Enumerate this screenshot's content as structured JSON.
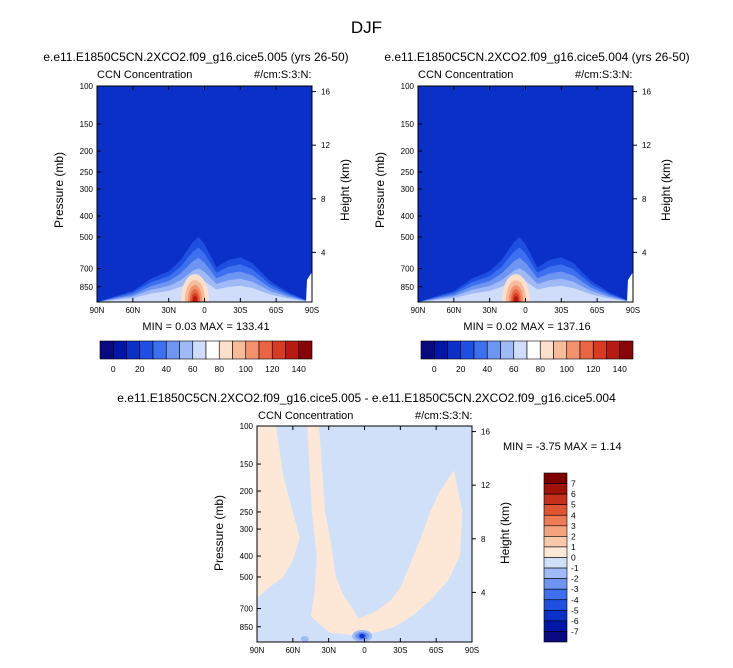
{
  "page": {
    "title": "DJF"
  },
  "colors": {
    "panel_scale": [
      "#0a0a80",
      "#0016a6",
      "#0a30c8",
      "#1f4fe0",
      "#3d70ef",
      "#6f95f2",
      "#9fbaf6",
      "#cfdcfa",
      "#ffffff",
      "#fce0cc",
      "#f8bb9a",
      "#f2916c",
      "#ea6544",
      "#d83a22",
      "#b81a12",
      "#880608"
    ],
    "diff_scale": [
      "#0a0a80",
      "#0016a6",
      "#0a30c8",
      "#1f4fe0",
      "#3d70ef",
      "#6f95f2",
      "#9fbaf6",
      "#cfe0f8",
      "#fde8d8",
      "#f8c9a8",
      "#f4a47d",
      "#ee7b54",
      "#e05430",
      "#c4301a",
      "#a01208",
      "#800000"
    ]
  },
  "panels": [
    {
      "title": "e.e11.E1850C5CN.2XCO2.f09_g16.cice5.005 (yrs 26-50)",
      "field": "CCN Concentration",
      "units": "#/cm:S:3:N:",
      "stats": "MIN =   0.03   MAX = 133.41"
    },
    {
      "title": "e.e11.E1850C5CN.2XCO2.f09_g16.cice5.004 (yrs 26-50)",
      "field": "CCN Concentration",
      "units": "#/cm:S:3:N:",
      "stats": "MIN =   0.02   MAX = 137.16"
    }
  ],
  "diff": {
    "title": "e.e11.E1850C5CN.2XCO2.f09_g16.cice5.005 - e.e11.E1850C5CN.2XCO2.f09_g16.cice5.004",
    "field": "CCN Concentration",
    "units": "#/cm:S:3:N:",
    "stats": "MIN =  -3.75   MAX =   1.14"
  },
  "axes": {
    "ylabel": "Pressure (mb)",
    "y2label": "Height (km)",
    "x_ticks": [
      "90N",
      "60N",
      "30N",
      "0",
      "30S",
      "60S",
      "90S"
    ],
    "p_ticks": [
      100,
      150,
      200,
      250,
      300,
      400,
      500,
      700,
      850
    ],
    "h_ticks": [
      16,
      12,
      8,
      4
    ]
  },
  "colorbar": {
    "labels": [
      "0",
      "20",
      "40",
      "60",
      "80",
      "100",
      "120",
      "140"
    ]
  },
  "diff_colorbar": {
    "labels": [
      "7",
      "6",
      "5",
      "4",
      "3",
      "2",
      "1",
      "0",
      "-1",
      "-2",
      "-3",
      "-4",
      "-5",
      "-6",
      "-7"
    ]
  },
  "chart_data": [
    {
      "type": "heatmap",
      "title": "e.e11.E1850C5CN.2XCO2.f09_g16.cice5.005 (yrs 26-50)",
      "subtitle_left": "CCN Concentration",
      "subtitle_right": "#/cm:S:3:N:",
      "xlabel": "",
      "ylabel": "Pressure (mb)",
      "y2label": "Height (km)",
      "xlim": [
        90,
        -90
      ],
      "ylim": [
        100,
        1000
      ],
      "y_scale": "log",
      "levels": [
        0,
        10,
        20,
        30,
        40,
        50,
        60,
        70,
        80,
        90,
        100,
        110,
        120,
        130,
        140
      ],
      "min": 0.03,
      "max": 133.41,
      "profile_top_pressure": [
        [
          90,
          1000
        ],
        [
          72,
          930
        ],
        [
          60,
          890
        ],
        [
          45,
          780
        ],
        [
          30,
          720
        ],
        [
          20,
          640
        ],
        [
          10,
          530
        ],
        [
          5,
          500
        ],
        [
          0,
          540
        ],
        [
          -10,
          690
        ],
        [
          -20,
          640
        ],
        [
          -30,
          620
        ],
        [
          -40,
          660
        ],
        [
          -55,
          800
        ],
        [
          -70,
          900
        ],
        [
          -85,
          980
        ]
      ],
      "peak": {
        "lat": 8,
        "pressure": 900,
        "value": 133.41
      }
    },
    {
      "type": "heatmap",
      "title": "e.e11.E1850C5CN.2XCO2.f09_g16.cice5.004 (yrs 26-50)",
      "subtitle_left": "CCN Concentration",
      "subtitle_right": "#/cm:S:3:N:",
      "xlabel": "",
      "ylabel": "Pressure (mb)",
      "y2label": "Height (km)",
      "xlim": [
        90,
        -90
      ],
      "ylim": [
        100,
        1000
      ],
      "y_scale": "log",
      "levels": [
        0,
        10,
        20,
        30,
        40,
        50,
        60,
        70,
        80,
        90,
        100,
        110,
        120,
        130,
        140
      ],
      "min": 0.02,
      "max": 137.16,
      "profile_top_pressure": [
        [
          90,
          1000
        ],
        [
          72,
          930
        ],
        [
          60,
          890
        ],
        [
          45,
          780
        ],
        [
          30,
          720
        ],
        [
          20,
          640
        ],
        [
          10,
          530
        ],
        [
          5,
          500
        ],
        [
          0,
          540
        ],
        [
          -10,
          690
        ],
        [
          -20,
          640
        ],
        [
          -30,
          620
        ],
        [
          -40,
          660
        ],
        [
          -55,
          800
        ],
        [
          -70,
          900
        ],
        [
          -85,
          980
        ]
      ],
      "peak": {
        "lat": 8,
        "pressure": 900,
        "value": 137.16
      }
    },
    {
      "type": "heatmap",
      "title": "e.e11.E1850C5CN.2XCO2.f09_g16.cice5.005 - e.e11.E1850C5CN.2XCO2.f09_g16.cice5.004",
      "subtitle_left": "CCN Concentration",
      "subtitle_right": "#/cm:S:3:N:",
      "xlabel": "",
      "ylabel": "Pressure (mb)",
      "y2label": "Height (km)",
      "xlim": [
        90,
        -90
      ],
      "ylim": [
        100,
        1000
      ],
      "y_scale": "log",
      "levels": [
        -7,
        -6,
        -5,
        -4,
        -3,
        -2,
        -1,
        0,
        1,
        2,
        3,
        4,
        5,
        6,
        7
      ],
      "min": -3.75,
      "max": 1.14,
      "positive_region": [
        [
          88,
          100
        ],
        [
          74,
          100
        ],
        [
          68,
          170
        ],
        [
          60,
          250
        ],
        [
          54,
          330
        ],
        [
          60,
          420
        ],
        [
          68,
          500
        ],
        [
          80,
          560
        ],
        [
          89,
          620
        ],
        [
          90,
          630
        ],
        [
          90,
          100
        ]
      ],
      "positive_region_2": [
        [
          48,
          100
        ],
        [
          38,
          100
        ],
        [
          33,
          250
        ],
        [
          28,
          350
        ],
        [
          24,
          500
        ],
        [
          18,
          600
        ],
        [
          10,
          700
        ],
        [
          5,
          780
        ],
        [
          0,
          760
        ],
        [
          -10,
          720
        ],
        [
          -22,
          640
        ],
        [
          -30,
          560
        ],
        [
          -38,
          440
        ],
        [
          -48,
          320
        ],
        [
          -55,
          250
        ],
        [
          -63,
          200
        ],
        [
          -75,
          160
        ],
        [
          -82,
          250
        ],
        [
          -80,
          400
        ],
        [
          -70,
          520
        ],
        [
          -55,
          640
        ],
        [
          -40,
          760
        ],
        [
          -25,
          850
        ],
        [
          -10,
          900
        ],
        [
          10,
          930
        ],
        [
          30,
          900
        ],
        [
          45,
          760
        ],
        [
          42,
          600
        ],
        [
          40,
          400
        ],
        [
          44,
          250
        ]
      ],
      "negative_spot": {
        "lat": 2,
        "pressure": 880,
        "value": -3.75
      }
    }
  ]
}
